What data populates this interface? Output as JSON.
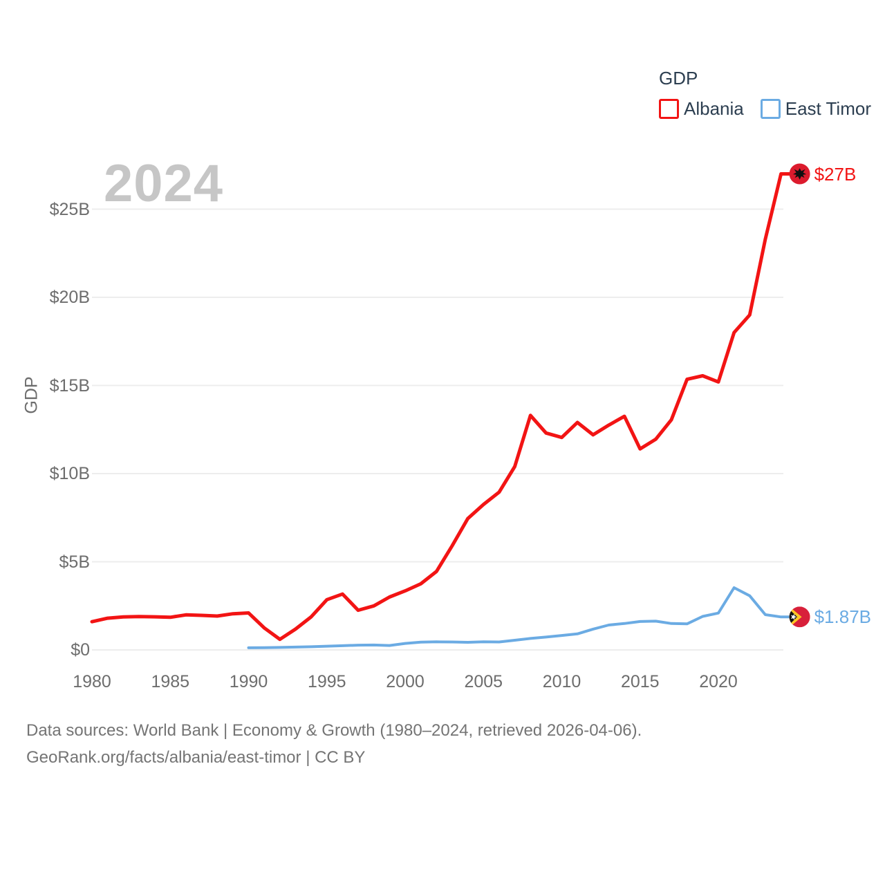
{
  "legend": {
    "title": "GDP",
    "series": [
      {
        "label": "Albania",
        "color": "#f21414"
      },
      {
        "label": "East Timor",
        "color": "#6babe3"
      }
    ]
  },
  "watermark": "2024",
  "y_axis": {
    "title": "GDP",
    "ticks": [
      "$0",
      "$5B",
      "$10B",
      "$15B",
      "$20B",
      "$25B"
    ],
    "tick_values": [
      0,
      5,
      10,
      15,
      20,
      25
    ]
  },
  "x_axis": {
    "ticks": [
      "1980",
      "1985",
      "1990",
      "1995",
      "2000",
      "2005",
      "2010",
      "2015",
      "2020"
    ],
    "tick_years": [
      1980,
      1985,
      1990,
      1995,
      2000,
      2005,
      2010,
      2015,
      2020
    ]
  },
  "end_labels": {
    "albania": "$27B",
    "east_timor": "$1.87B"
  },
  "footer": {
    "line1": "Data sources: World Bank | Economy & Growth (1980–2024, retrieved 2026-04-06).",
    "line2": "GeoRank.org/facts/albania/east-timor | CC BY"
  },
  "chart_data": {
    "type": "line",
    "title": "GDP",
    "xlabel": "",
    "ylabel": "GDP",
    "unit": "billion USD",
    "xlim": [
      1980,
      2024
    ],
    "ylim": [
      0,
      27.5
    ],
    "grid": "horizontal-only",
    "legend_position": "top-right",
    "series": [
      {
        "name": "Albania",
        "color": "#f21414",
        "end_label": "$27B",
        "x": [
          1980,
          1981,
          1982,
          1983,
          1984,
          1985,
          1986,
          1987,
          1988,
          1989,
          1990,
          1991,
          1992,
          1993,
          1994,
          1995,
          1996,
          1997,
          1998,
          1999,
          2000,
          2001,
          2002,
          2003,
          2004,
          2005,
          2006,
          2007,
          2008,
          2009,
          2010,
          2011,
          2012,
          2013,
          2014,
          2015,
          2016,
          2017,
          2018,
          2019,
          2020,
          2021,
          2022,
          2023,
          2024
        ],
        "values": [
          1.6,
          1.8,
          1.87,
          1.89,
          1.88,
          1.85,
          1.99,
          1.96,
          1.92,
          2.05,
          2.1,
          1.25,
          0.6,
          1.18,
          1.88,
          2.85,
          3.17,
          2.25,
          2.5,
          3.0,
          3.35,
          3.75,
          4.45,
          5.9,
          7.45,
          8.25,
          8.95,
          10.4,
          13.3,
          12.3,
          12.05,
          12.9,
          12.2,
          12.75,
          13.25,
          11.4,
          11.95,
          13.05,
          15.35,
          15.55,
          15.2,
          18.0,
          19.0,
          23.3,
          27.0
        ]
      },
      {
        "name": "East Timor",
        "color": "#6babe3",
        "end_label": "$1.87B",
        "x": [
          1990,
          1991,
          1992,
          1993,
          1994,
          1995,
          1996,
          1997,
          1998,
          1999,
          2000,
          2001,
          2002,
          2003,
          2004,
          2005,
          2006,
          2007,
          2008,
          2009,
          2010,
          2011,
          2012,
          2013,
          2014,
          2015,
          2016,
          2017,
          2018,
          2019,
          2020,
          2021,
          2022,
          2023,
          2024
        ],
        "values": [
          0.12,
          0.13,
          0.14,
          0.16,
          0.18,
          0.21,
          0.24,
          0.27,
          0.28,
          0.25,
          0.37,
          0.44,
          0.46,
          0.45,
          0.43,
          0.46,
          0.45,
          0.55,
          0.65,
          0.73,
          0.82,
          0.91,
          1.18,
          1.41,
          1.5,
          1.61,
          1.63,
          1.5,
          1.48,
          1.9,
          2.09,
          3.53,
          3.07,
          2.0,
          1.87
        ]
      }
    ]
  }
}
